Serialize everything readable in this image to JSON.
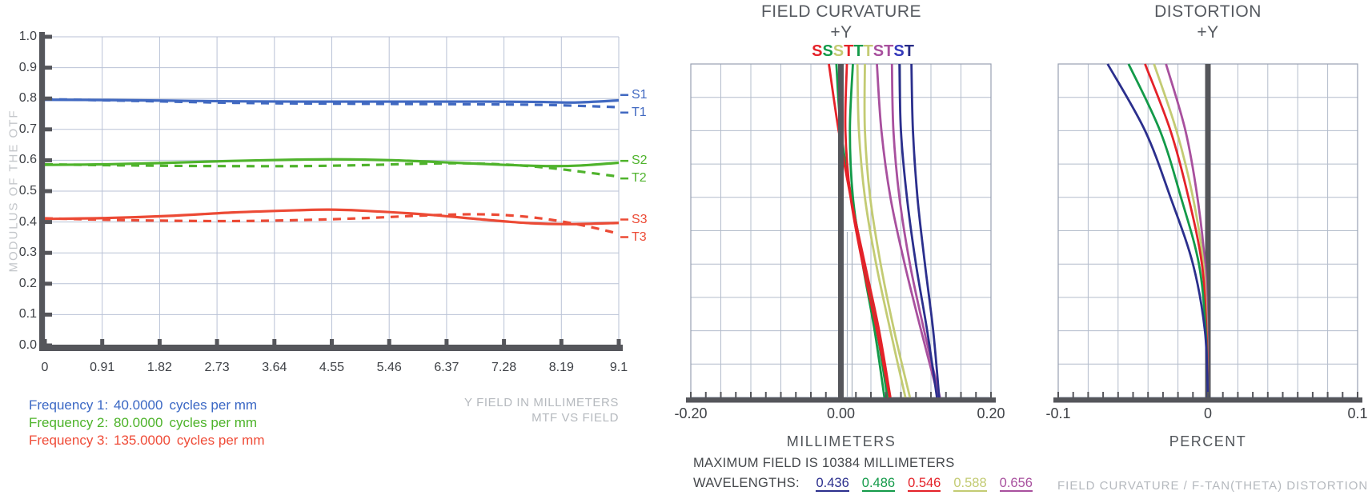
{
  "page": {
    "background": "#ffffff"
  },
  "chart_data": [
    {
      "type": "line",
      "id": "mtf",
      "title": "MTF VS FIELD",
      "xlabel": "Y FIELD IN MILLIMETERS",
      "ylabel": "MODULUS OF THE OTF",
      "xlim": [
        0,
        9.1
      ],
      "ylim": [
        0.0,
        1.0
      ],
      "grid": true,
      "xticks": [
        "0",
        "0.91",
        "1.82",
        "2.73",
        "3.64",
        "4.55",
        "5.46",
        "6.37",
        "7.28",
        "8.19",
        "9.1"
      ],
      "yticks": [
        "1.0",
        "0.9",
        "0.8",
        "0.7",
        "0.6",
        "0.5",
        "0.4",
        "0.3",
        "0.2",
        "0.1",
        "0.0"
      ],
      "series": [
        {
          "name": "S1",
          "color": "#4169c1",
          "dash": false,
          "points": [
            [
              0,
              0.796
            ],
            [
              1,
              0.795
            ],
            [
              2,
              0.793
            ],
            [
              3,
              0.791
            ],
            [
              4,
              0.79
            ],
            [
              5,
              0.79
            ],
            [
              6,
              0.79
            ],
            [
              7,
              0.79
            ],
            [
              7.8,
              0.789
            ],
            [
              8.4,
              0.787
            ],
            [
              9.1,
              0.794
            ]
          ]
        },
        {
          "name": "T1",
          "color": "#4169c1",
          "dash": true,
          "points": [
            [
              0,
              0.798
            ],
            [
              1,
              0.794
            ],
            [
              2,
              0.79
            ],
            [
              3,
              0.786
            ],
            [
              4,
              0.784
            ],
            [
              5,
              0.783
            ],
            [
              6,
              0.782
            ],
            [
              7,
              0.781
            ],
            [
              8,
              0.779
            ],
            [
              9.1,
              0.772
            ]
          ]
        },
        {
          "name": "S2",
          "color": "#4fb32c",
          "dash": false,
          "points": [
            [
              0,
              0.585
            ],
            [
              1,
              0.587
            ],
            [
              2,
              0.592
            ],
            [
              3,
              0.598
            ],
            [
              4,
              0.602
            ],
            [
              4.6,
              0.603
            ],
            [
              5.5,
              0.6
            ],
            [
              6.5,
              0.592
            ],
            [
              7.3,
              0.585
            ],
            [
              8,
              0.581
            ],
            [
              8.5,
              0.583
            ],
            [
              9.1,
              0.592
            ]
          ]
        },
        {
          "name": "T2",
          "color": "#4fb32c",
          "dash": true,
          "points": [
            [
              0,
              0.587
            ],
            [
              1,
              0.584
            ],
            [
              2,
              0.582
            ],
            [
              3,
              0.581
            ],
            [
              4,
              0.581
            ],
            [
              5,
              0.584
            ],
            [
              6,
              0.589
            ],
            [
              6.7,
              0.59
            ],
            [
              7.4,
              0.585
            ],
            [
              8,
              0.575
            ],
            [
              8.5,
              0.563
            ],
            [
              9.1,
              0.547
            ]
          ]
        },
        {
          "name": "S3",
          "color": "#ec4a35",
          "dash": false,
          "points": [
            [
              0,
              0.41
            ],
            [
              1,
              0.413
            ],
            [
              2,
              0.42
            ],
            [
              3,
              0.431
            ],
            [
              4,
              0.438
            ],
            [
              4.5,
              0.44
            ],
            [
              5,
              0.437
            ],
            [
              6,
              0.425
            ],
            [
              7,
              0.407
            ],
            [
              7.7,
              0.396
            ],
            [
              8.3,
              0.393
            ],
            [
              9.1,
              0.397
            ]
          ]
        },
        {
          "name": "T3",
          "color": "#ec4a35",
          "dash": true,
          "points": [
            [
              0,
              0.412
            ],
            [
              1,
              0.407
            ],
            [
              2,
              0.404
            ],
            [
              3,
              0.403
            ],
            [
              4,
              0.406
            ],
            [
              5,
              0.412
            ],
            [
              6,
              0.421
            ],
            [
              6.8,
              0.425
            ],
            [
              7.4,
              0.421
            ],
            [
              8,
              0.408
            ],
            [
              8.6,
              0.386
            ],
            [
              9.1,
              0.362
            ]
          ]
        }
      ],
      "legend": [
        {
          "label": "Frequency 1:",
          "value": "40.0000",
          "unit": "cycles per mm",
          "color": "#3a67c4"
        },
        {
          "label": "Frequency 2:",
          "value": "80.0000",
          "unit": "cycles per mm",
          "color": "#4db32a"
        },
        {
          "label": "Frequency 3:",
          "value": "135.0000",
          "unit": "cycles per mm",
          "color": "#ef4b37"
        }
      ]
    },
    {
      "type": "line",
      "id": "field-curvature",
      "title": "FIELD CURVATURE",
      "subtitle": "+Y",
      "xlabel": "MILLIMETERS",
      "xlim": [
        -0.2,
        0.2
      ],
      "xticks": [
        "-0.20",
        "0.00",
        "0.20"
      ],
      "grid": true,
      "top_markers": [
        {
          "text": "S",
          "color": "#e42229"
        },
        {
          "text": "S",
          "color": "#139a49"
        },
        {
          "text": "S",
          "color": "#c3cb73"
        },
        {
          "text": "T",
          "color": "#e42229"
        },
        {
          "text": "T",
          "color": "#139a49"
        },
        {
          "text": "T",
          "color": "#c3cb73"
        },
        {
          "text": "S",
          "color": "#a8509e"
        },
        {
          "text": "T",
          "color": "#a8509e"
        },
        {
          "text": "S",
          "color": "#3439bb"
        },
        {
          "text": "T",
          "color": "#272b85"
        }
      ],
      "series": [
        {
          "name": "S",
          "wavelength": "0.588",
          "color": "#c3cb73",
          "points": [
            [
              0.022,
              1
            ],
            [
              0.024,
              0.8
            ],
            [
              0.032,
              0.6
            ],
            [
              0.047,
              0.4
            ],
            [
              0.066,
              0.2
            ],
            [
              0.086,
              0
            ]
          ]
        },
        {
          "name": "T",
          "wavelength": "0.588",
          "color": "#c3cb73",
          "points": [
            [
              0.032,
              1
            ],
            [
              0.032,
              0.8
            ],
            [
              0.039,
              0.6
            ],
            [
              0.053,
              0.4
            ],
            [
              0.071,
              0.2
            ],
            [
              0.092,
              0
            ]
          ]
        },
        {
          "name": "S",
          "wavelength": "0.656",
          "color": "#a8509e",
          "points": [
            [
              0.048,
              1
            ],
            [
              0.054,
              0.8
            ],
            [
              0.066,
              0.6
            ],
            [
              0.085,
              0.4
            ],
            [
              0.107,
              0.2
            ],
            [
              0.13,
              0
            ]
          ]
        },
        {
          "name": "T",
          "wavelength": "0.656",
          "color": "#a8509e",
          "points": [
            [
              0.068,
              1
            ],
            [
              0.07,
              0.8
            ],
            [
              0.078,
              0.6
            ],
            [
              0.092,
              0.4
            ],
            [
              0.111,
              0.2
            ],
            [
              0.132,
              0
            ]
          ]
        },
        {
          "name": "S",
          "wavelength": "0.436",
          "color": "#2b2f8d",
          "points": [
            [
              0.078,
              1
            ],
            [
              0.08,
              0.8
            ],
            [
              0.088,
              0.6
            ],
            [
              0.1,
              0.4
            ],
            [
              0.115,
              0.2
            ],
            [
              0.128,
              0
            ]
          ]
        },
        {
          "name": "T",
          "wavelength": "0.436",
          "color": "#2b2f8d",
          "points": [
            [
              0.094,
              1
            ],
            [
              0.096,
              0.8
            ],
            [
              0.102,
              0.6
            ],
            [
              0.112,
              0.4
            ],
            [
              0.123,
              0.2
            ],
            [
              0.131,
              0
            ]
          ]
        },
        {
          "name": "S",
          "wavelength": "0.486",
          "color": "#139a49",
          "points": [
            [
              -0.006,
              1
            ],
            [
              0.0,
              0.8
            ],
            [
              0.014,
              0.6
            ],
            [
              0.031,
              0.4
            ],
            [
              0.048,
              0.2
            ],
            [
              0.062,
              0
            ]
          ]
        },
        {
          "name": "T",
          "wavelength": "0.486",
          "color": "#139a49",
          "points": [
            [
              0.016,
              1
            ],
            [
              0.012,
              0.8
            ],
            [
              0.016,
              0.6
            ],
            [
              0.029,
              0.4
            ],
            [
              0.045,
              0.2
            ],
            [
              0.058,
              0
            ]
          ]
        },
        {
          "name": "S",
          "wavelength": "0.546",
          "color": "#e42229",
          "points": [
            [
              -0.016,
              1
            ],
            [
              -0.003,
              0.8
            ],
            [
              0.013,
              0.6
            ],
            [
              0.032,
              0.4
            ],
            [
              0.051,
              0.2
            ],
            [
              0.066,
              0
            ]
          ]
        },
        {
          "name": "T",
          "wavelength": "0.546",
          "color": "#e42229",
          "points": [
            [
              0.008,
              1
            ],
            [
              0.006,
              0.8
            ],
            [
              0.013,
              0.6
            ],
            [
              0.029,
              0.4
            ],
            [
              0.048,
              0.2
            ],
            [
              0.065,
              0
            ]
          ]
        }
      ],
      "note": "MAXIMUM FIELD IS 10384 MILLIMETERS",
      "wavelengths_label": "WAVELENGTHS:",
      "wavelengths": [
        {
          "value": "0.436",
          "color": "#2b2f8d"
        },
        {
          "value": "0.486",
          "color": "#139a49"
        },
        {
          "value": "0.546",
          "color": "#e42229"
        },
        {
          "value": "0.588",
          "color": "#c3cb73"
        },
        {
          "value": "0.656",
          "color": "#a8509e"
        }
      ]
    },
    {
      "type": "line",
      "id": "distortion",
      "title": "DISTORTION",
      "subtitle": "+Y",
      "xlabel": "PERCENT",
      "xlim": [
        -0.1,
        0.1
      ],
      "xticks": [
        "-0.1",
        "0",
        "0.1"
      ],
      "grid": true,
      "series": [
        {
          "name": "0.656",
          "color": "#a8509e",
          "points": [
            [
              -0.028,
              1
            ],
            [
              -0.015,
              0.8
            ],
            [
              -0.007,
              0.6
            ],
            [
              -0.002,
              0.4
            ],
            [
              -0.0005,
              0.2
            ],
            [
              0.0,
              0
            ]
          ]
        },
        {
          "name": "0.588",
          "color": "#c3cb73",
          "points": [
            [
              -0.036,
              1
            ],
            [
              -0.021,
              0.8
            ],
            [
              -0.01,
              0.6
            ],
            [
              -0.003,
              0.4
            ],
            [
              -0.0008,
              0.2
            ],
            [
              0.0,
              0
            ]
          ]
        },
        {
          "name": "0.546",
          "color": "#e42229",
          "points": [
            [
              -0.042,
              1
            ],
            [
              -0.025,
              0.8
            ],
            [
              -0.013,
              0.6
            ],
            [
              -0.004,
              0.4
            ],
            [
              -0.001,
              0.2
            ],
            [
              0.0,
              0
            ]
          ]
        },
        {
          "name": "0.486",
          "color": "#139a49",
          "points": [
            [
              -0.053,
              1
            ],
            [
              -0.032,
              0.8
            ],
            [
              -0.018,
              0.6
            ],
            [
              -0.006,
              0.4
            ],
            [
              -0.0015,
              0.2
            ],
            [
              0.0,
              0
            ]
          ]
        },
        {
          "name": "0.436",
          "color": "#2b2f8d",
          "points": [
            [
              -0.067,
              1
            ],
            [
              -0.042,
              0.8
            ],
            [
              -0.025,
              0.6
            ],
            [
              -0.01,
              0.4
            ],
            [
              -0.002,
              0.2
            ],
            [
              0.0,
              0
            ]
          ]
        }
      ],
      "footer": "FIELD CURVATURE / F-TAN(THETA)  DISTORTION"
    }
  ]
}
